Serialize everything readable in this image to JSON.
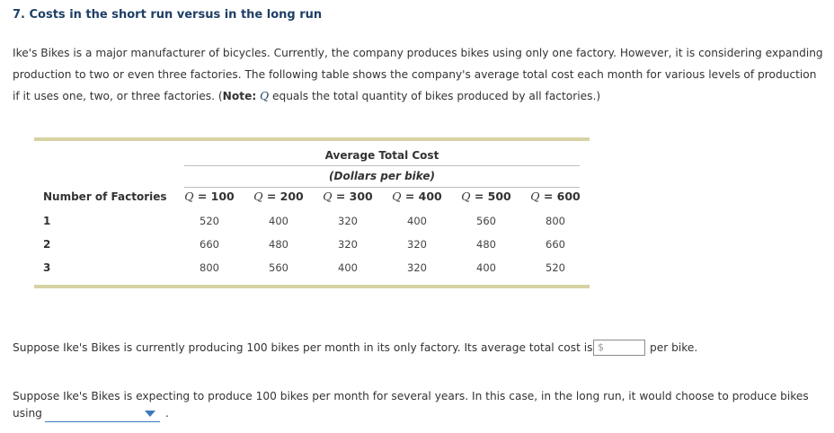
{
  "title": "7. Costs in the short run versus in the long run",
  "intro": {
    "part1": "Ike's Bikes is a major manufacturer of bicycles. Currently, the company produces bikes using only one factory. However, it is considering expanding production to two or even three factories. The following table shows the company's average total cost each month for various levels of production if it uses one, two, or three factories. (",
    "note_label": "Note:",
    "note_space": " ",
    "q": "Q",
    "part2": " equals the total quantity of bikes produced by all factories.)"
  },
  "table": {
    "group_title": "Average Total Cost",
    "group_subtitle": "(Dollars per bike)",
    "row_header": "Number of Factories",
    "columns": [
      {
        "q": "Q",
        "label": " = 100"
      },
      {
        "q": "Q",
        "label": " = 200"
      },
      {
        "q": "Q",
        "label": " = 300"
      },
      {
        "q": "Q",
        "label": " = 400"
      },
      {
        "q": "Q",
        "label": " = 500"
      },
      {
        "q": "Q",
        "label": " = 600"
      }
    ],
    "rows": [
      {
        "factories": "1",
        "values": [
          "520",
          "400",
          "320",
          "400",
          "560",
          "800"
        ]
      },
      {
        "factories": "2",
        "values": [
          "660",
          "480",
          "320",
          "320",
          "480",
          "660"
        ]
      },
      {
        "factories": "3",
        "values": [
          "800",
          "560",
          "400",
          "320",
          "400",
          "520"
        ]
      }
    ]
  },
  "question1": {
    "text": "Suppose Ike's Bikes is currently producing 100 bikes per month in its only factory. Its average total cost is",
    "currency": "$",
    "value": "",
    "after": "per bike."
  },
  "question2": {
    "text": "Suppose Ike's Bikes is expecting to produce 100 bikes per month for several years. In this case, in the long run, it would choose to produce bikes",
    "using": "using",
    "selected": "",
    "period": "."
  },
  "colors": {
    "title": "#1f3f66",
    "table_rule": "#d8d2a4",
    "dropdown_accent": "#3d7ab8"
  }
}
